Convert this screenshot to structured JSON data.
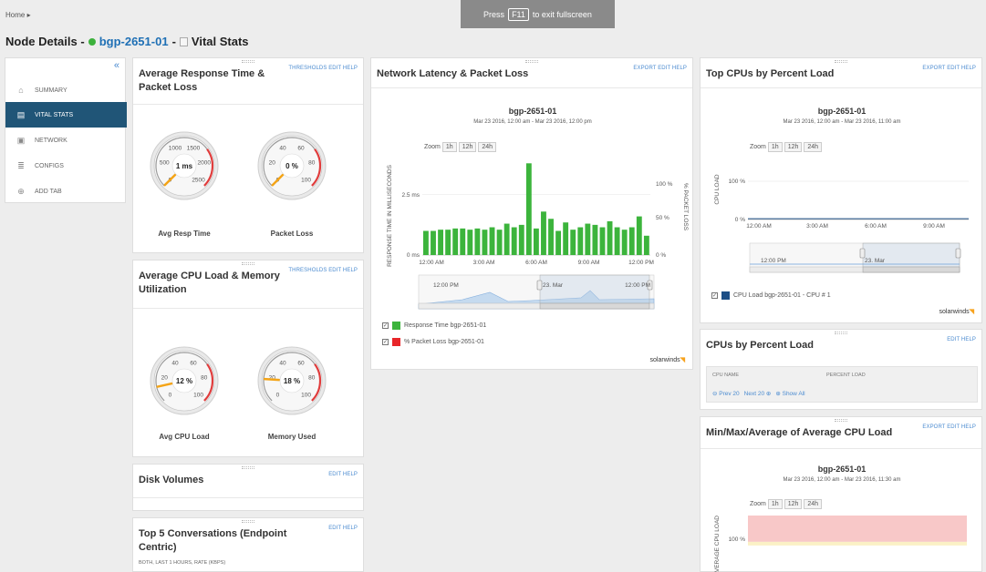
{
  "breadcrumb": {
    "home": "Home",
    "arrow": "▸"
  },
  "fullscreen_banner": {
    "press": "Press",
    "key": "F11",
    "rest": "to exit fullscreen"
  },
  "page_title": {
    "prefix": "Node Details -",
    "node": "bgp-2651-01",
    "sep": "-",
    "suffix": "Vital Stats"
  },
  "sidebar": {
    "collapse": "«",
    "items": [
      {
        "label": "SUMMARY",
        "icon": "home-icon",
        "active": false
      },
      {
        "label": "VITAL STATS",
        "icon": "document-icon",
        "active": true
      },
      {
        "label": "NETWORK",
        "icon": "network-icon",
        "active": false
      },
      {
        "label": "CONFIGS",
        "icon": "config-icon",
        "active": false
      },
      {
        "label": "ADD TAB",
        "icon": "plus-circle-icon",
        "active": false
      }
    ]
  },
  "panels": {
    "resp": {
      "title": "Average Response Time & Packet Loss",
      "actions": "THRESHOLDS EDIT HELP",
      "gauges": [
        {
          "label": "Avg Resp Time",
          "value_text": "1 ms",
          "ticks": [
            "0",
            "500",
            "1000",
            "1500",
            "2000",
            "2500"
          ],
          "value": 1,
          "min": 0,
          "max": 2500
        },
        {
          "label": "Packet Loss",
          "value_text": "0 %",
          "ticks": [
            "0",
            "20",
            "40",
            "60",
            "80",
            "100"
          ],
          "value": 0,
          "min": 0,
          "max": 100
        }
      ]
    },
    "cpu": {
      "title": "Average CPU Load & Memory Utilization",
      "actions": "THRESHOLDS EDIT HELP",
      "gauges": [
        {
          "label": "Avg CPU Load",
          "value_text": "12 %",
          "ticks": [
            "0",
            "20",
            "40",
            "60",
            "80",
            "100"
          ],
          "value": 12,
          "min": 0,
          "max": 100
        },
        {
          "label": "Memory Used",
          "value_text": "18 %",
          "ticks": [
            "0",
            "20",
            "40",
            "60",
            "80",
            "100"
          ],
          "value": 18,
          "min": 0,
          "max": 100
        }
      ]
    },
    "disk": {
      "title": "Disk Volumes",
      "actions": "EDIT HELP"
    },
    "conv": {
      "title": "Top 5 Conversations (Endpoint Centric)",
      "actions": "EDIT HELP",
      "subtitle": "BOTH, LAST 1 HOURS, RATE (KBPS)"
    },
    "latency": {
      "title": "Network Latency & Packet Loss",
      "actions": "EXPORT EDIT HELP",
      "node": "bgp-2651-01",
      "range": "Mar 23 2016, 12:00 am - Mar 23 2016, 12:00 pm",
      "zoom_label": "Zoom",
      "zoom_opts": [
        "1h",
        "12h",
        "24h"
      ],
      "y_left_title": "RESPONSE TIME IN MILLISECONDS",
      "y_right_title": "% PACKET LOSS",
      "y_left_ticks": [
        "0 ms",
        "2.5 ms"
      ],
      "y_right_ticks": [
        "0 %",
        "50 %",
        "100 %"
      ],
      "x_ticks": [
        "12:00 AM",
        "3:00 AM",
        "6:00 AM",
        "9:00 AM",
        "12:00 PM"
      ],
      "nav_labels": [
        "12:00 PM",
        "23. Mar",
        "12:00 PM"
      ],
      "legend": [
        {
          "label": "Response Time bgp-2651-01",
          "color": "#3cb43c"
        },
        {
          "label": "% Packet Loss bgp-2651-01",
          "color": "#e8262a"
        }
      ]
    },
    "topcpu": {
      "title": "Top CPUs by Percent Load",
      "actions": "EXPORT EDIT HELP",
      "node": "bgp-2651-01",
      "range": "Mar 23 2016, 12:00 am - Mar 23 2016, 11:00 am",
      "zoom_label": "Zoom",
      "zoom_opts": [
        "1h",
        "12h",
        "24h"
      ],
      "y_title": "CPU LOAD",
      "y_ticks": [
        "0 %",
        "100 %"
      ],
      "x_ticks": [
        "12:00 AM",
        "3:00 AM",
        "6:00 AM",
        "9:00 AM"
      ],
      "nav_labels": [
        "12:00 PM",
        "23. Mar"
      ],
      "legend": [
        {
          "label": "CPU Load bgp-2651-01 - CPU # 1",
          "color": "#1d4f86"
        }
      ]
    },
    "cpus": {
      "title": "CPUs by Percent Load",
      "actions": "EDIT HELP",
      "col_name": "CPU NAME",
      "col_load": "PERCENT LOAD",
      "prev": "Prev 20",
      "next": "Next 20",
      "show_all": "Show All"
    },
    "minmax": {
      "title": "Min/Max/Average of Average CPU Load",
      "actions": "EXPORT EDIT HELP",
      "node": "bgp-2651-01",
      "range": "Mar 23 2016, 12:00 am - Mar 23 2016, 11:30 am",
      "zoom_label": "Zoom",
      "zoom_opts": [
        "1h",
        "12h",
        "24h"
      ],
      "y_title": "AVERAGE CPU LOAD",
      "y_ticks": [
        "100 %"
      ]
    }
  },
  "brand": {
    "name": "solarwinds"
  },
  "chart_data": [
    {
      "type": "bar",
      "series": [
        {
          "name": "Response Time bgp-2651-01",
          "values": [
            1,
            1,
            1.05,
            1.05,
            1.1,
            1.1,
            1.05,
            1.1,
            1.05,
            1.15,
            1.05,
            1.3,
            1.15,
            1.25,
            3.8,
            1.1,
            1.8,
            1.5,
            1,
            1.35,
            1.05,
            1.15,
            1.3,
            1.25,
            1.15,
            1.4,
            1.15,
            1.05,
            1.15,
            1.6,
            0.8
          ]
        },
        {
          "name": "% Packet Loss bgp-2651-01",
          "values": []
        }
      ],
      "ylim": [
        0,
        4
      ],
      "y2lim": [
        0,
        100
      ]
    },
    {
      "type": "line",
      "series": [
        {
          "name": "CPU Load bgp-2651-01 - CPU # 1",
          "values": [
            2,
            2,
            2,
            2,
            2,
            2,
            2,
            2,
            2,
            2,
            2,
            2
          ]
        }
      ],
      "ylim": [
        0,
        100
      ]
    },
    {
      "type": "area",
      "ylim": [
        0,
        100
      ],
      "min_band": [
        92
      ],
      "max_band": [
        150
      ]
    }
  ]
}
